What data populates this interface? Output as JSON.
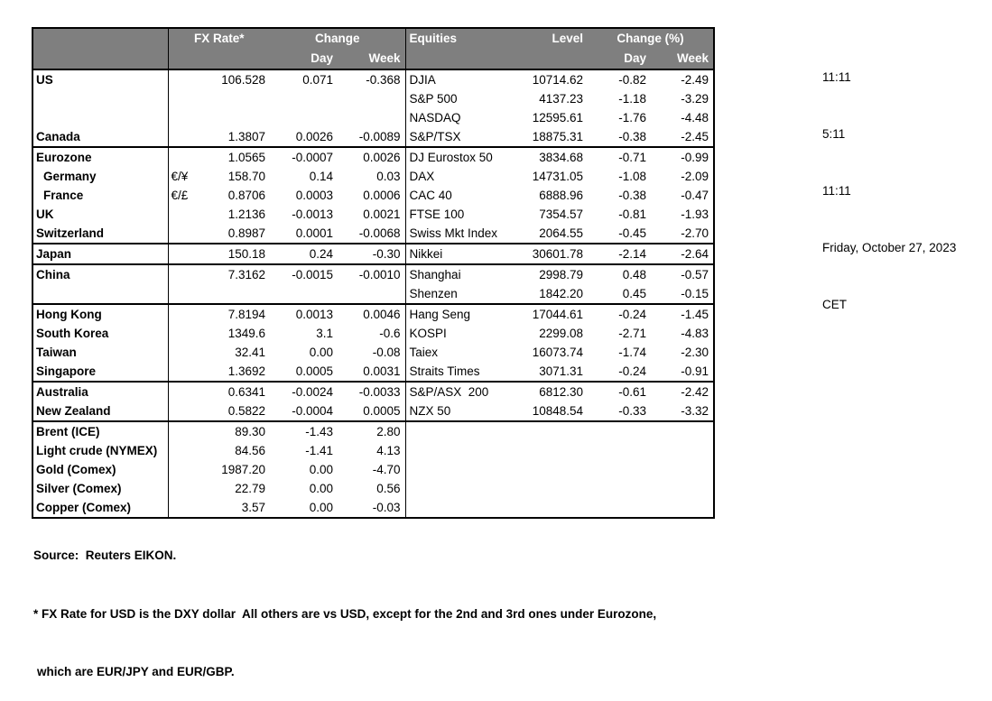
{
  "colors": {
    "header_bg": "#7f7f7f",
    "header_text": "#ffffff",
    "border": "#000000",
    "text": "#000000",
    "background": "#ffffff"
  },
  "clock": {
    "lines": [
      "11:11",
      "5:11",
      "11:11",
      "Friday, October 27, 2023",
      "CET"
    ]
  },
  "table": {
    "fx_header": {
      "rate": "FX Rate*",
      "change": "Change",
      "day": "Day",
      "week": "Week"
    },
    "equity_header": {
      "name": "Equities",
      "level": "Level",
      "change_pct": "Change (%)",
      "day": "Day",
      "week": "Week"
    },
    "rows": [
      {
        "name": "US",
        "pair": "",
        "fx": "106.528",
        "fx_day": "0.071",
        "fx_week": "-0.368",
        "equity": "DJIA",
        "level": "10714.62",
        "eq_day": "-0.82",
        "eq_week": "-2.49"
      },
      {
        "name": "",
        "pair": "",
        "fx": "",
        "fx_day": "",
        "fx_week": "",
        "equity": "S&P 500",
        "level": "4137.23",
        "eq_day": "-1.18",
        "eq_week": "-3.29"
      },
      {
        "name": "",
        "pair": "",
        "fx": "",
        "fx_day": "",
        "fx_week": "",
        "equity": "NASDAQ",
        "level": "12595.61",
        "eq_day": "-1.76",
        "eq_week": "-4.48"
      },
      {
        "name": "Canada",
        "pair": "",
        "fx": "1.3807",
        "fx_day": "0.0026",
        "fx_week": "-0.0089",
        "equity": "S&P/TSX",
        "level": "18875.31",
        "eq_day": "-0.38",
        "eq_week": "-2.45"
      },
      {
        "name": "Eurozone",
        "pair": "",
        "fx": "1.0565",
        "fx_day": "-0.0007",
        "fx_week": "0.0026",
        "equity": "DJ Eurostox 50",
        "level": "3834.68",
        "eq_day": "-0.71",
        "eq_week": "-0.99",
        "group_start": true
      },
      {
        "name": "Germany",
        "indent": true,
        "pair": "€/¥",
        "fx": "158.70",
        "fx_day": "0.14",
        "fx_week": "0.03",
        "equity": "DAX",
        "level": "14731.05",
        "eq_day": "-1.08",
        "eq_week": "-2.09"
      },
      {
        "name": "France",
        "indent": true,
        "pair": "€/£",
        "fx": "0.8706",
        "fx_day": "0.0003",
        "fx_week": "0.0006",
        "equity": "CAC 40",
        "level": "6888.96",
        "eq_day": "-0.38",
        "eq_week": "-0.47"
      },
      {
        "name": "UK",
        "pair": "",
        "fx": "1.2136",
        "fx_day": "-0.0013",
        "fx_week": "0.0021",
        "equity": "FTSE 100",
        "level": "7354.57",
        "eq_day": "-0.81",
        "eq_week": "-1.93"
      },
      {
        "name": "Switzerland",
        "pair": "",
        "fx": "0.8987",
        "fx_day": "0.0001",
        "fx_week": "-0.0068",
        "equity": "Swiss Mkt Index",
        "level": "2064.55",
        "eq_day": "-0.45",
        "eq_week": "-2.70"
      },
      {
        "name": "Japan",
        "pair": "",
        "fx": "150.18",
        "fx_day": "0.24",
        "fx_week": "-0.30",
        "equity": "Nikkei",
        "level": "30601.78",
        "eq_day": "-2.14",
        "eq_week": "-2.64",
        "group_start": true
      },
      {
        "name": "China",
        "pair": "",
        "fx": "7.3162",
        "fx_day": "-0.0015",
        "fx_week": "-0.0010",
        "equity": "Shanghai",
        "level": "2998.79",
        "eq_day": "0.48",
        "eq_week": "-0.57",
        "group_start": true
      },
      {
        "name": "",
        "pair": "",
        "fx": "",
        "fx_day": "",
        "fx_week": "",
        "equity": "Shenzen",
        "level": "1842.20",
        "eq_day": "0.45",
        "eq_week": "-0.15"
      },
      {
        "name": "Hong Kong",
        "pair": "",
        "fx": "7.8194",
        "fx_day": "0.0013",
        "fx_week": "0.0046",
        "equity": "Hang Seng",
        "level": "17044.61",
        "eq_day": "-0.24",
        "eq_week": "-1.45",
        "group_start": true
      },
      {
        "name": "South Korea",
        "pair": "",
        "fx": "1349.6",
        "fx_day": "3.1",
        "fx_week": "-0.6",
        "equity": "KOSPI",
        "level": "2299.08",
        "eq_day": "-2.71",
        "eq_week": "-4.83"
      },
      {
        "name": "Taiwan",
        "pair": "",
        "fx": "32.41",
        "fx_day": "0.00",
        "fx_week": "-0.08",
        "equity": "Taiex",
        "level": "16073.74",
        "eq_day": "-1.74",
        "eq_week": "-2.30"
      },
      {
        "name": "Singapore",
        "pair": "",
        "fx": "1.3692",
        "fx_day": "0.0005",
        "fx_week": "0.0031",
        "equity": "Straits Times",
        "level": "3071.31",
        "eq_day": "-0.24",
        "eq_week": "-0.91"
      },
      {
        "name": "Australia",
        "pair": "",
        "fx": "0.6341",
        "fx_day": "-0.0024",
        "fx_week": "-0.0033",
        "equity": "S&P/ASX  200",
        "level": "6812.30",
        "eq_day": "-0.61",
        "eq_week": "-2.42",
        "group_start": true
      },
      {
        "name": "New Zealand",
        "pair": "",
        "fx": "0.5822",
        "fx_day": "-0.0004",
        "fx_week": "0.0005",
        "equity": "NZX 50",
        "level": "10848.54",
        "eq_day": "-0.33",
        "eq_week": "-3.32"
      },
      {
        "name": "Brent (ICE)",
        "pair": "",
        "fx": "89.30",
        "fx_day": "-1.43",
        "fx_week": "2.80",
        "equity": "",
        "level": "",
        "eq_day": "",
        "eq_week": "",
        "group_start": true
      },
      {
        "name": "Light crude (NYMEX)",
        "pair": "",
        "fx": "84.56",
        "fx_day": "-1.41",
        "fx_week": "4.13",
        "equity": "",
        "level": "",
        "eq_day": "",
        "eq_week": ""
      },
      {
        "name": "Gold (Comex)",
        "pair": "",
        "fx": "1987.20",
        "fx_day": "0.00",
        "fx_week": "-4.70",
        "equity": "",
        "level": "",
        "eq_day": "",
        "eq_week": ""
      },
      {
        "name": "Silver (Comex)",
        "pair": "",
        "fx": "22.79",
        "fx_day": "0.00",
        "fx_week": "0.56",
        "equity": "",
        "level": "",
        "eq_day": "",
        "eq_week": ""
      },
      {
        "name": "Copper (Comex)",
        "pair": "",
        "fx": "3.57",
        "fx_day": "0.00",
        "fx_week": "-0.03",
        "equity": "",
        "level": "",
        "eq_day": "",
        "eq_week": ""
      }
    ]
  },
  "footer": {
    "source": "Source:  Reuters EIKON.",
    "note1": "* FX Rate for USD is the DXY dollar  All others are vs USD, except for the 2nd and 3rd ones under Eurozone,",
    "note2": "which are EUR/JPY and EUR/GBP."
  }
}
